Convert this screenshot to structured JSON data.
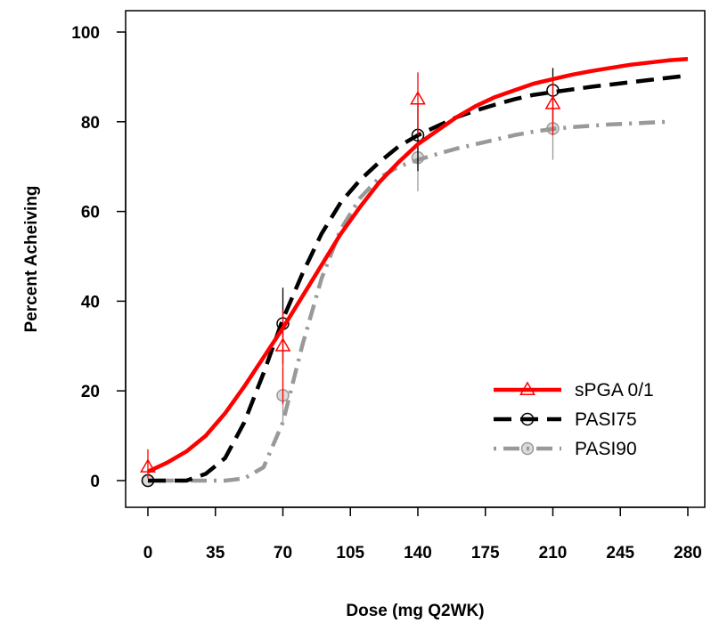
{
  "chart_data": {
    "type": "line",
    "xlabel": "Dose (mg Q2WK)",
    "ylabel": "Percent Acheiving",
    "xlim": [
      -15,
      285
    ],
    "ylim": [
      -5,
      105
    ],
    "xticks": [
      0,
      35,
      70,
      105,
      140,
      175,
      210,
      245,
      280
    ],
    "yticks": [
      0,
      20,
      40,
      60,
      80,
      100
    ],
    "grid": false,
    "legend_position": "bottom-right",
    "series": [
      {
        "name": "sPGA 0/1",
        "color": "#ff0000",
        "line_style": "solid",
        "marker": "triangle",
        "curve": {
          "x": [
            0,
            10,
            20,
            30,
            40,
            50,
            60,
            70,
            80,
            90,
            100,
            110,
            120,
            130,
            140,
            150,
            160,
            170,
            180,
            190,
            200,
            210,
            220,
            230,
            240,
            250,
            260,
            270,
            280
          ],
          "y": [
            2,
            4,
            6.5,
            10,
            15,
            21,
            27.5,
            34,
            41,
            48,
            55,
            61,
            66.5,
            71,
            75,
            78,
            81,
            83.5,
            85.5,
            87,
            88.5,
            89.5,
            90.5,
            91.3,
            92,
            92.7,
            93.2,
            93.7,
            94
          ]
        },
        "observed": {
          "x": [
            0,
            70,
            140,
            210
          ],
          "y": [
            3,
            30,
            85,
            84
          ],
          "ci_low": [
            0.5,
            17,
            77,
            77
          ],
          "ci_high": [
            7,
            38,
            91,
            90
          ]
        }
      },
      {
        "name": "PASI75",
        "color": "#000000",
        "line_style": "dashed",
        "marker": "circle",
        "curve": {
          "x": [
            0,
            10,
            20,
            30,
            40,
            50,
            60,
            70,
            80,
            90,
            100,
            110,
            120,
            130,
            140,
            150,
            160,
            170,
            180,
            190,
            200,
            210,
            220,
            230,
            240,
            250,
            260,
            270,
            280
          ],
          "y": [
            0,
            0,
            0,
            1.5,
            5,
            13,
            24,
            36,
            46,
            55,
            62,
            67,
            71,
            74.5,
            77,
            79,
            81,
            82.5,
            83.8,
            85,
            86,
            86.6,
            87.2,
            87.8,
            88.3,
            88.8,
            89.3,
            89.8,
            90.3
          ]
        },
        "observed": {
          "x": [
            0,
            70,
            140,
            210
          ],
          "y": [
            0,
            35,
            77,
            87
          ],
          "ci_low": [
            0,
            26,
            69,
            80
          ],
          "ci_high": [
            0,
            43,
            84,
            92
          ]
        }
      },
      {
        "name": "PASI90",
        "color": "#999999",
        "line_style": "dashdot",
        "marker": "circle-filled",
        "curve": {
          "x": [
            0,
            10,
            20,
            30,
            40,
            50,
            60,
            70,
            80,
            90,
            100,
            110,
            120,
            130,
            140,
            150,
            160,
            170,
            180,
            190,
            200,
            210,
            220,
            230,
            240,
            250,
            260,
            270
          ],
          "y": [
            0,
            0,
            0,
            0,
            0,
            0.5,
            3,
            13,
            30,
            45,
            56,
            63,
            67.5,
            70,
            71.5,
            72.8,
            74,
            75,
            76,
            77,
            77.8,
            78.4,
            78.8,
            79.1,
            79.4,
            79.6,
            79.8,
            80
          ]
        },
        "observed": {
          "x": [
            0,
            70,
            140,
            210
          ],
          "y": [
            0,
            19,
            72,
            78.5
          ],
          "ci_low": [
            0,
            12.5,
            64.5,
            71.5
          ],
          "ci_high": [
            0,
            25,
            79,
            85
          ]
        }
      }
    ]
  }
}
